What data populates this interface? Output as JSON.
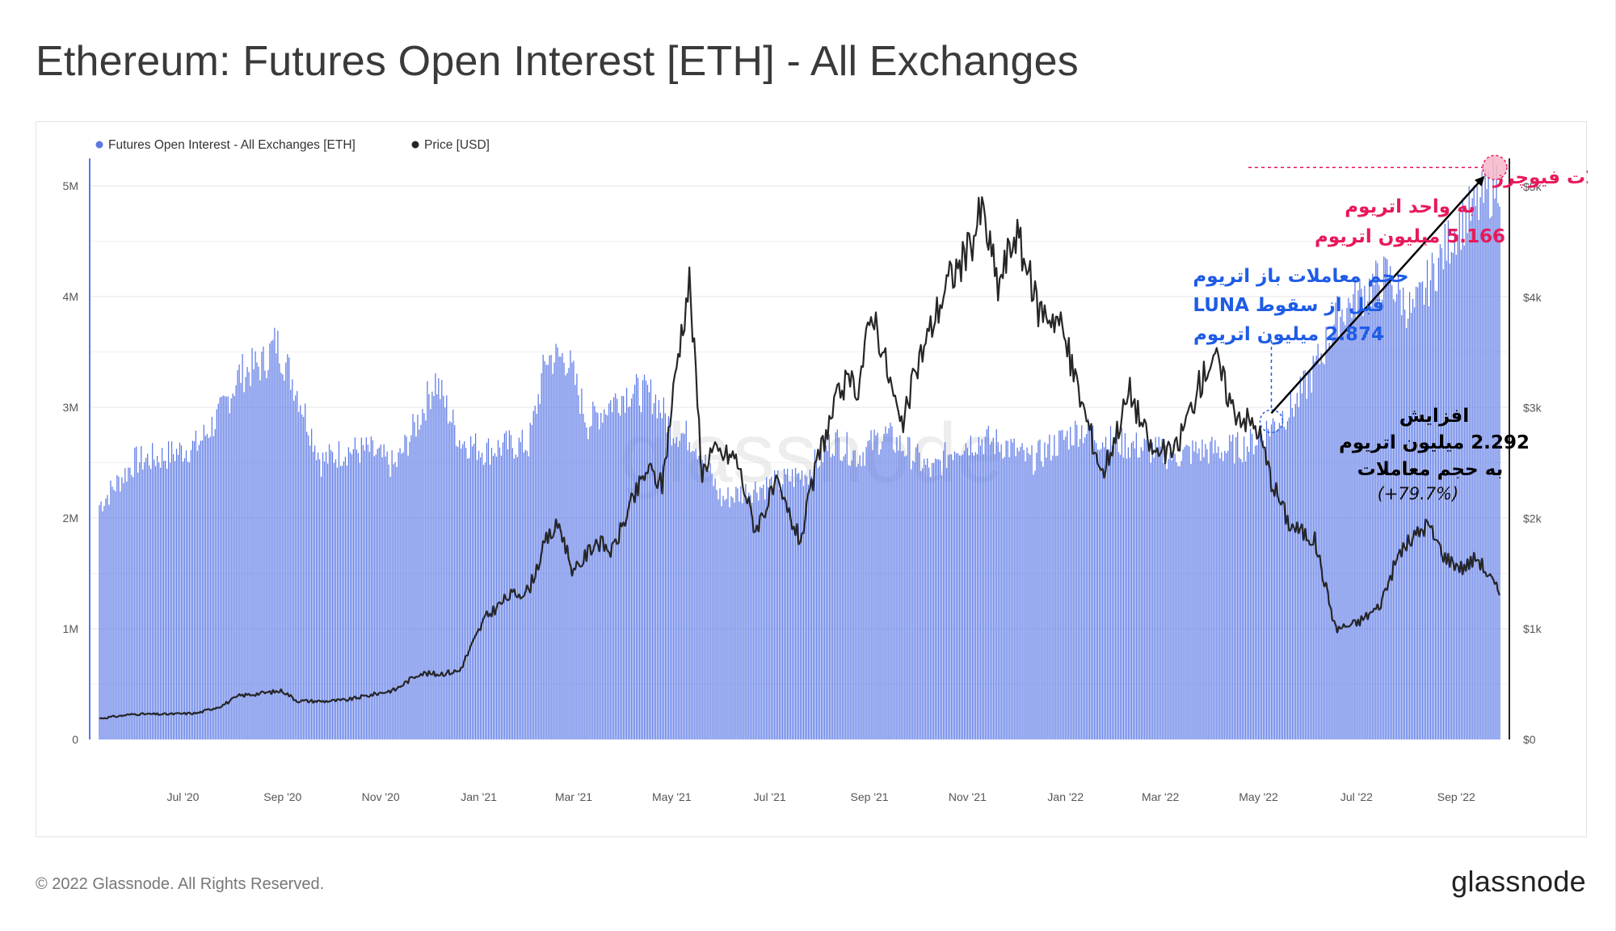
{
  "page": {
    "title": "Ethereum: Futures Open Interest [ETH] - All Exchanges",
    "copyright": "© 2022 Glassnode. All Rights Reserved.",
    "logo": "glassnode",
    "watermark": "glassnode"
  },
  "colors": {
    "oi_bar": "#5b78e6",
    "price_line": "#262626",
    "annotation_pink": "#e8195a",
    "annotation_blue": "#1f5ce6",
    "annotation_black": "#000000",
    "grid": "#e6e6e6"
  },
  "chart_data": {
    "type": "bar",
    "title": "Ethereum: Futures Open Interest [ETH] - All Exchanges",
    "x_range": [
      "2020-05-10",
      "2022-09-28"
    ],
    "x_ticks": [
      {
        "date": "2020-07-01",
        "label": "Jul '20"
      },
      {
        "date": "2020-09-01",
        "label": "Sep '20"
      },
      {
        "date": "2020-11-01",
        "label": "Nov '20"
      },
      {
        "date": "2021-01-01",
        "label": "Jan '21"
      },
      {
        "date": "2021-03-01",
        "label": "Mar '21"
      },
      {
        "date": "2021-05-01",
        "label": "May '21"
      },
      {
        "date": "2021-07-01",
        "label": "Jul '21"
      },
      {
        "date": "2021-09-01",
        "label": "Sep '21"
      },
      {
        "date": "2021-11-01",
        "label": "Nov '21"
      },
      {
        "date": "2022-01-01",
        "label": "Jan '22"
      },
      {
        "date": "2022-03-01",
        "label": "Mar '22"
      },
      {
        "date": "2022-05-01",
        "label": "May '22"
      },
      {
        "date": "2022-07-01",
        "label": "Jul '22"
      },
      {
        "date": "2022-09-01",
        "label": "Sep '22"
      }
    ],
    "y_left": {
      "min": 0,
      "max": 5000000,
      "ticks": [
        {
          "v": 0,
          "label": "0"
        },
        {
          "v": 1000000,
          "label": "1M"
        },
        {
          "v": 2000000,
          "label": "2M"
        },
        {
          "v": 3000000,
          "label": "3M"
        },
        {
          "v": 4000000,
          "label": "4M"
        },
        {
          "v": 5000000,
          "label": "5M"
        }
      ]
    },
    "y_right": {
      "min": 0,
      "max": 5000,
      "ticks": [
        {
          "v": 0,
          "label": "$0"
        },
        {
          "v": 1000,
          "label": "$1k"
        },
        {
          "v": 2000,
          "label": "$2k"
        },
        {
          "v": 3000,
          "label": "$3k"
        },
        {
          "v": 4000,
          "label": "$4k"
        },
        {
          "v": 5000,
          "label": "$5k"
        }
      ]
    },
    "legend_placement": "top-left",
    "series": [
      {
        "name": "Futures Open Interest - All Exchanges [ETH]",
        "axis": "left",
        "style": "bar",
        "points": [
          [
            "2020-05-10",
            2150000
          ],
          [
            "2020-06-01",
            2550000
          ],
          [
            "2020-06-20",
            2600000
          ],
          [
            "2020-07-10",
            2700000
          ],
          [
            "2020-07-25",
            3000000
          ],
          [
            "2020-08-05",
            3350000
          ],
          [
            "2020-08-20",
            3450000
          ],
          [
            "2020-08-28",
            3650000
          ],
          [
            "2020-09-10",
            3200000
          ],
          [
            "2020-09-25",
            2550000
          ],
          [
            "2020-10-10",
            2650000
          ],
          [
            "2020-10-25",
            2650000
          ],
          [
            "2020-11-10",
            2500000
          ],
          [
            "2020-11-25",
            2950000
          ],
          [
            "2020-12-05",
            3300000
          ],
          [
            "2020-12-20",
            2750000
          ],
          [
            "2021-01-05",
            2650000
          ],
          [
            "2021-01-20",
            2700000
          ],
          [
            "2021-02-01",
            2700000
          ],
          [
            "2021-02-12",
            3500000
          ],
          [
            "2021-02-25",
            3500000
          ],
          [
            "2021-03-10",
            2900000
          ],
          [
            "2021-03-25",
            3100000
          ],
          [
            "2021-04-05",
            3200000
          ],
          [
            "2021-04-20",
            3150000
          ],
          [
            "2021-05-01",
            2850000
          ],
          [
            "2021-05-15",
            2750000
          ],
          [
            "2021-06-01",
            2200000
          ],
          [
            "2021-06-20",
            2300000
          ],
          [
            "2021-07-05",
            2350000
          ],
          [
            "2021-07-25",
            2450000
          ],
          [
            "2021-08-10",
            2750000
          ],
          [
            "2021-08-25",
            2600000
          ],
          [
            "2021-09-10",
            2800000
          ],
          [
            "2021-09-25",
            2650000
          ],
          [
            "2021-10-10",
            2450000
          ],
          [
            "2021-10-25",
            2700000
          ],
          [
            "2021-11-10",
            2750000
          ],
          [
            "2021-11-25",
            2700000
          ],
          [
            "2021-12-10",
            2550000
          ],
          [
            "2021-12-25",
            2700000
          ],
          [
            "2022-01-10",
            2850000
          ],
          [
            "2022-01-25",
            2750000
          ],
          [
            "2022-02-10",
            2700000
          ],
          [
            "2022-02-25",
            2650000
          ],
          [
            "2022-03-10",
            2600000
          ],
          [
            "2022-03-25",
            2650000
          ],
          [
            "2022-04-10",
            2650000
          ],
          [
            "2022-04-25",
            2700000
          ],
          [
            "2022-05-09",
            2874000
          ],
          [
            "2022-05-25",
            3100000
          ],
          [
            "2022-06-05",
            3400000
          ],
          [
            "2022-06-20",
            3900000
          ],
          [
            "2022-07-05",
            4100000
          ],
          [
            "2022-07-20",
            4250000
          ],
          [
            "2022-08-05",
            3900000
          ],
          [
            "2022-08-20",
            4350000
          ],
          [
            "2022-09-01",
            4700000
          ],
          [
            "2022-09-15",
            4900000
          ],
          [
            "2022-09-28",
            5166000
          ]
        ]
      },
      {
        "name": "Price [USD]",
        "axis": "right",
        "style": "line",
        "points": [
          [
            "2020-05-10",
            190
          ],
          [
            "2020-06-01",
            230
          ],
          [
            "2020-06-20",
            228
          ],
          [
            "2020-07-10",
            238
          ],
          [
            "2020-07-25",
            305
          ],
          [
            "2020-08-05",
            395
          ],
          [
            "2020-08-20",
            420
          ],
          [
            "2020-09-01",
            440
          ],
          [
            "2020-09-10",
            350
          ],
          [
            "2020-09-25",
            345
          ],
          [
            "2020-10-10",
            355
          ],
          [
            "2020-10-25",
            400
          ],
          [
            "2020-11-10",
            450
          ],
          [
            "2020-11-25",
            600
          ],
          [
            "2020-12-05",
            590
          ],
          [
            "2020-12-20",
            620
          ],
          [
            "2021-01-05",
            1100
          ],
          [
            "2021-01-20",
            1300
          ],
          [
            "2021-02-01",
            1350
          ],
          [
            "2021-02-12",
            1800
          ],
          [
            "2021-02-20",
            1950
          ],
          [
            "2021-03-01",
            1500
          ],
          [
            "2021-03-15",
            1800
          ],
          [
            "2021-03-25",
            1700
          ],
          [
            "2021-04-05",
            2100
          ],
          [
            "2021-04-16",
            2450
          ],
          [
            "2021-04-25",
            2300
          ],
          [
            "2021-05-05",
            3500
          ],
          [
            "2021-05-12",
            4150
          ],
          [
            "2021-05-20",
            2400
          ],
          [
            "2021-05-25",
            2600
          ],
          [
            "2021-06-10",
            2550
          ],
          [
            "2021-06-22",
            1900
          ],
          [
            "2021-07-05",
            2300
          ],
          [
            "2021-07-20",
            1800
          ],
          [
            "2021-08-01",
            2600
          ],
          [
            "2021-08-15",
            3200
          ],
          [
            "2021-08-25",
            3200
          ],
          [
            "2021-09-03",
            3900
          ],
          [
            "2021-09-21",
            2800
          ],
          [
            "2021-10-01",
            3400
          ],
          [
            "2021-10-20",
            4150
          ],
          [
            "2021-11-01",
            4400
          ],
          [
            "2021-11-10",
            4800
          ],
          [
            "2021-11-20",
            4100
          ],
          [
            "2021-12-01",
            4600
          ],
          [
            "2021-12-15",
            3900
          ],
          [
            "2021-12-28",
            3800
          ],
          [
            "2022-01-10",
            3100
          ],
          [
            "2022-01-24",
            2400
          ],
          [
            "2022-02-10",
            3150
          ],
          [
            "2022-02-24",
            2600
          ],
          [
            "2022-03-10",
            2600
          ],
          [
            "2022-03-25",
            3200
          ],
          [
            "2022-04-03",
            3500
          ],
          [
            "2022-04-15",
            3000
          ],
          [
            "2022-05-01",
            2800
          ],
          [
            "2022-05-09",
            2350
          ],
          [
            "2022-05-20",
            1950
          ],
          [
            "2022-06-05",
            1800
          ],
          [
            "2022-06-18",
            1000
          ],
          [
            "2022-07-01",
            1050
          ],
          [
            "2022-07-15",
            1200
          ],
          [
            "2022-07-28",
            1700
          ],
          [
            "2022-08-14",
            1950
          ],
          [
            "2022-08-25",
            1650
          ],
          [
            "2022-09-05",
            1550
          ],
          [
            "2022-09-14",
            1650
          ],
          [
            "2022-09-28",
            1320
          ]
        ]
      }
    ],
    "annotations": {
      "current": {
        "lines": [
          "حجم باز فعلی معاملات فیوچرز",
          "به واحد اتریوم",
          "5.166 میلیون اتریوم"
        ],
        "date": "2022-09-28",
        "value": 5166000
      },
      "pre_luna": {
        "lines": [
          "حجم معاملات باز اتریوم",
          "قبل از سقوط LUNA",
          "2.874 میلیون اتریوم"
        ],
        "date": "2022-05-09",
        "value": 2874000
      },
      "increase": {
        "lines": [
          "افزایش",
          "2.292 میلیون اتریوم",
          "به حجم معاملات",
          "(+79.7%)"
        ]
      }
    }
  }
}
